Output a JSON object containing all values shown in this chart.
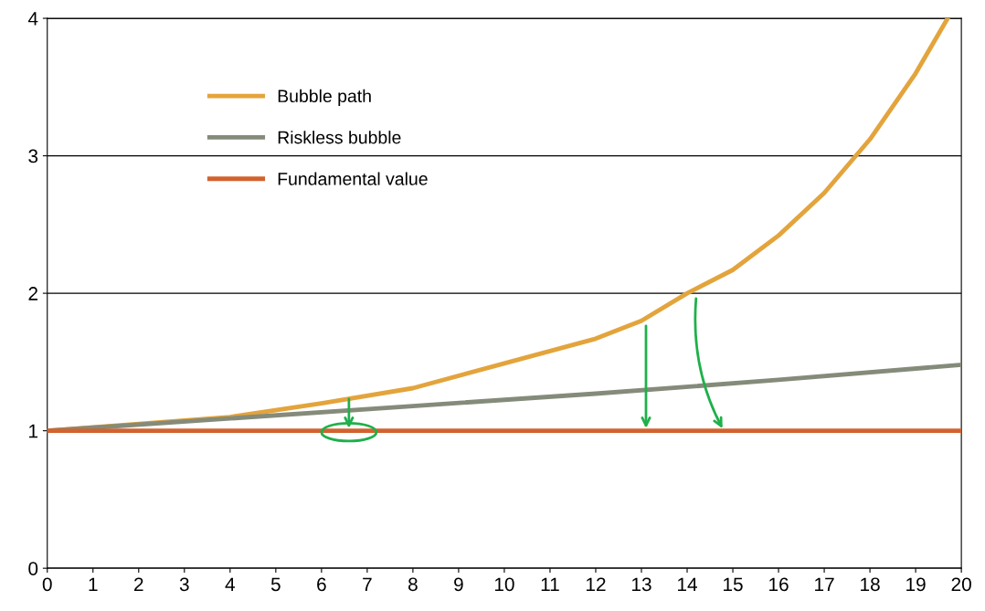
{
  "chart_data": {
    "type": "line",
    "xlim": [
      0,
      20
    ],
    "ylim": [
      0,
      4
    ],
    "xticks": [
      0,
      1,
      2,
      3,
      4,
      5,
      6,
      7,
      8,
      9,
      10,
      11,
      12,
      13,
      14,
      15,
      16,
      17,
      18,
      19,
      20
    ],
    "yticks": [
      0,
      1,
      2,
      3,
      4
    ],
    "grid": "y",
    "legend": "top left",
    "marker": "none",
    "line_style": "solid",
    "series": [
      {
        "name": "Bubble path",
        "color": "#e3a43c",
        "x": [
          0,
          2,
          4,
          6,
          8,
          10,
          12,
          13,
          14,
          15,
          16,
          17,
          18,
          19,
          19.7
        ],
        "values": [
          1,
          1.05,
          1.1,
          1.2,
          1.31,
          1.49,
          1.67,
          1.8,
          2,
          2.17,
          2.42,
          2.73,
          3.12,
          3.6,
          4
        ]
      },
      {
        "name": "Riskless bubble",
        "color": "#858b7a",
        "x": [
          0,
          4,
          8,
          12,
          16,
          20
        ],
        "values": [
          1,
          1.09,
          1.18,
          1.27,
          1.37,
          1.48
        ]
      },
      {
        "name": "Fundamental value",
        "color": "#d2622f",
        "x": [
          0,
          20
        ],
        "values": [
          1,
          1
        ]
      }
    ]
  }
}
